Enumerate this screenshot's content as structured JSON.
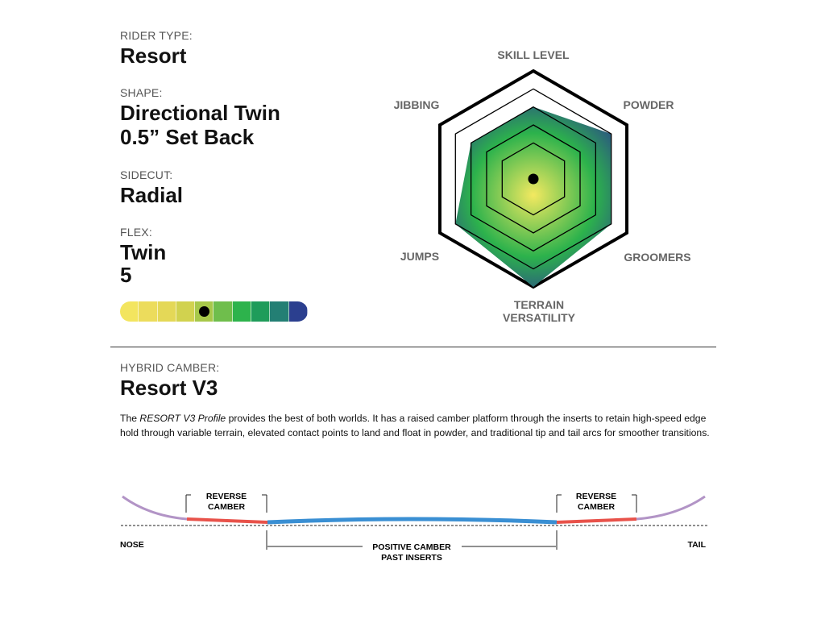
{
  "specs": {
    "rider_type": {
      "label": "RIDER TYPE:",
      "value": "Resort"
    },
    "shape": {
      "label": "SHAPE:",
      "value_line1": "Directional Twin",
      "value_line2": "0.5” Set Back"
    },
    "sidecut": {
      "label": "SIDECUT:",
      "value": "Radial"
    },
    "flex": {
      "label": "FLEX:",
      "value_line1": "Twin",
      "value_line2": "5",
      "level": 5,
      "max": 10,
      "colors": [
        "#f3e55f",
        "#ecdc5c",
        "#e4d857",
        "#d1d24f",
        "#a7c84a",
        "#6fbe4c",
        "#2db34c",
        "#1f9c5a",
        "#237f74",
        "#2b3f8f"
      ]
    }
  },
  "chart_data": {
    "type": "radar",
    "axes": [
      "SKILL LEVEL",
      "POWDER",
      "GROOMERS",
      "TERRAIN VERSATILITY",
      "JUMPS",
      "JIBBING"
    ],
    "axis_label_lines": [
      [
        "SKILL LEVEL"
      ],
      [
        "POWDER"
      ],
      [
        "GROOMERS"
      ],
      [
        "TERRAIN",
        "VERSATILITY"
      ],
      [
        "JUMPS"
      ],
      [
        "JIBBING"
      ]
    ],
    "values": [
      4,
      5,
      5,
      6,
      5,
      4
    ],
    "rings": [
      2,
      3,
      4,
      5,
      6
    ],
    "max": 6,
    "fill_colors": {
      "center": "#f3e960",
      "mid": "#2cb24c",
      "edge": "#2b3a92"
    }
  },
  "camber": {
    "label": "HYBRID CAMBER:",
    "name": "Resort V3",
    "desc_italic": "RESORT V3 Profile",
    "desc_prefix": "The ",
    "desc_rest": " provides the best of both worlds. It has a raised camber platform through the inserts to retain high-speed edge hold through variable terrain, elevated contact points to land and float in powder, and traditional tip and tail arcs for smoother transitions.",
    "diagram": {
      "reverse_camber_left": [
        "REVERSE",
        "CAMBER"
      ],
      "reverse_camber_right": [
        "REVERSE",
        "CAMBER"
      ],
      "positive_camber": [
        "POSITIVE CAMBER",
        "PAST INSERTS"
      ],
      "nose": "NOSE",
      "tail": "TAIL",
      "colors": {
        "tip": "#b294c6",
        "reverse": "#e8524a",
        "positive": "#3a8fd3"
      }
    }
  }
}
